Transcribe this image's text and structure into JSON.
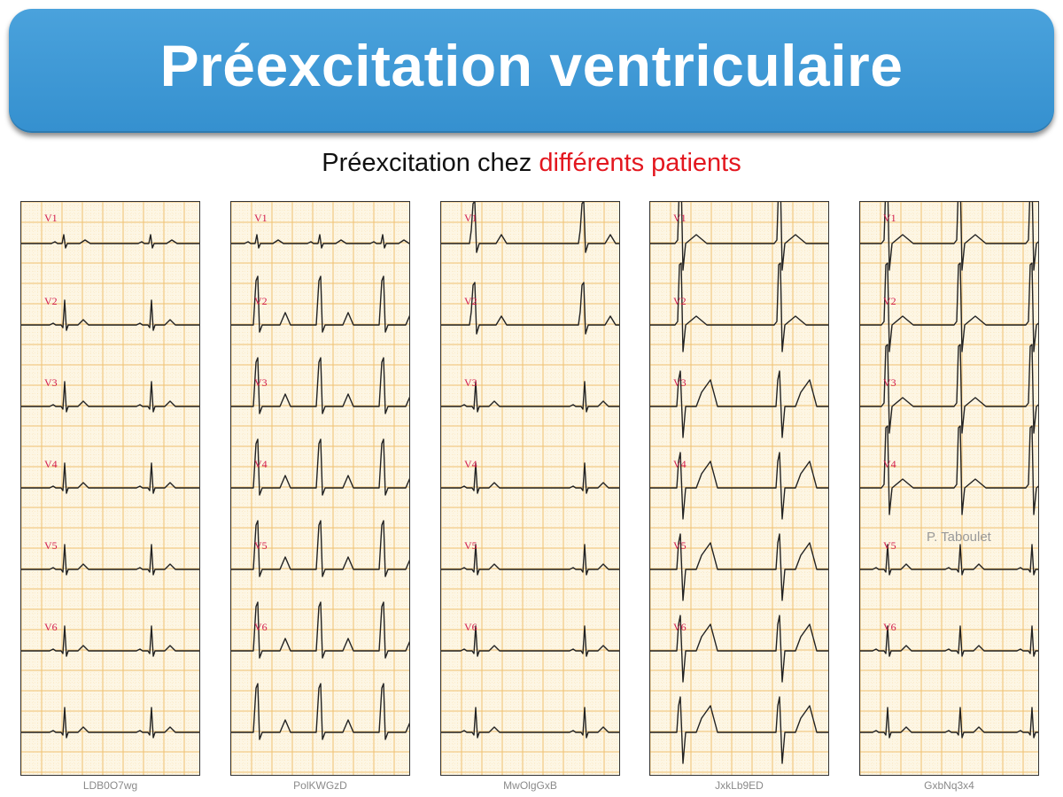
{
  "slide": {
    "title": "Préexcitation ventriculaire",
    "subtitle_black": "Préexcitation chez ",
    "subtitle_red": "différents patients",
    "credit": "P. Taboulet"
  },
  "strips": [
    {
      "code": "LDB0O7wg"
    },
    {
      "code": "PolKWGzD"
    },
    {
      "code": "MwOlgGxB"
    },
    {
      "code": "JxkLb9ED"
    },
    {
      "code": "GxbNq3x4"
    }
  ],
  "leads": [
    "V1",
    "V2",
    "V3",
    "V4",
    "V5",
    "V6"
  ],
  "colors": {
    "banner": "#3a96d6",
    "subtitle_accent": "#e3171f",
    "lead_label": "#d2194b",
    "grid_major": "#f0c070",
    "grid_minor": "#f6dca8",
    "trace": "#222222"
  }
}
